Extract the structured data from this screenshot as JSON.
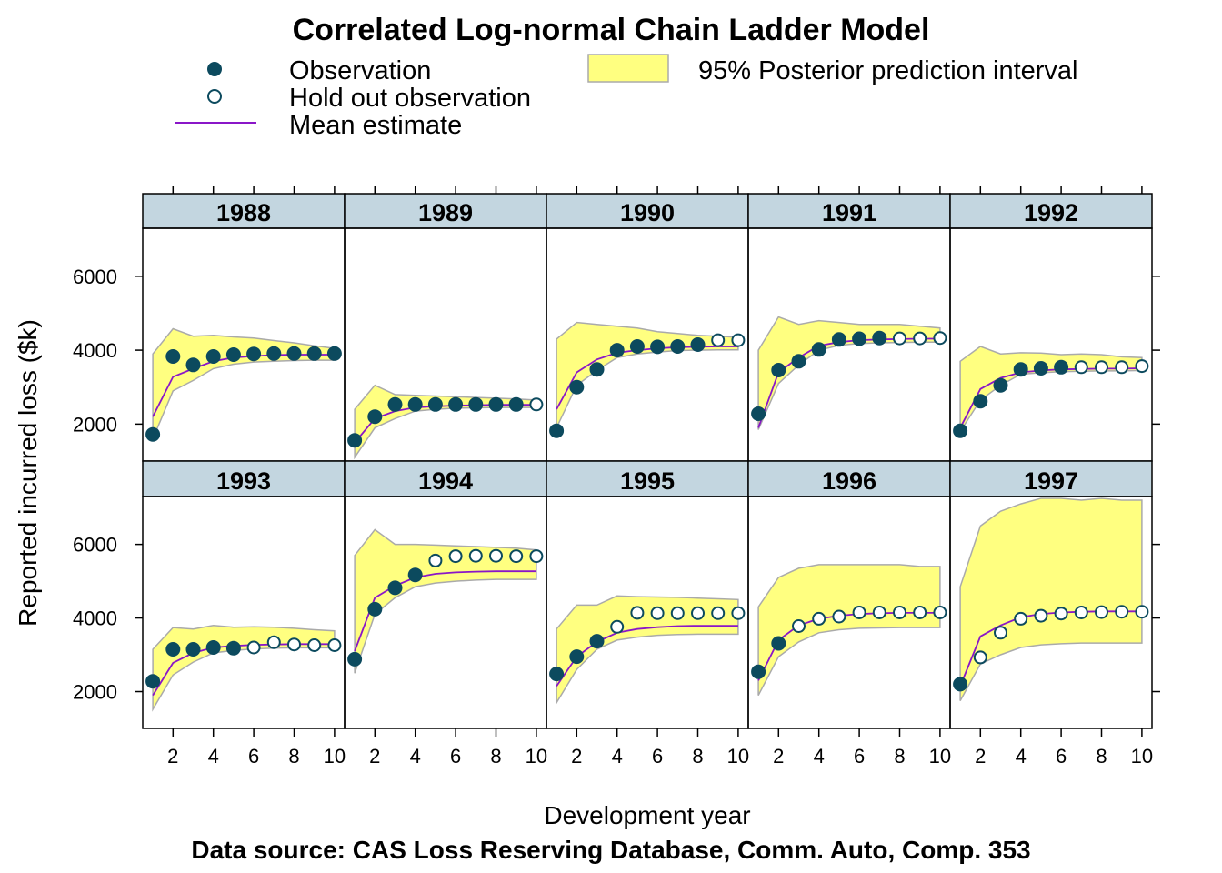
{
  "chart_data": {
    "type": "line",
    "title": "Correlated Log-normal Chain Ladder Model",
    "xlabel": "Development year",
    "ylabel": "Reported incurred loss ($k)",
    "caption": "Data source: CAS Loss Reserving Database, Comm. Auto, Comp. 353",
    "xlim": [
      0.5,
      10.5
    ],
    "ylim": [
      1000,
      7300
    ],
    "x_ticks": [
      2,
      4,
      6,
      8,
      10
    ],
    "y_ticks": [
      2000,
      4000,
      6000
    ],
    "legend": [
      {
        "label": "Observation",
        "kind": "filled-point"
      },
      {
        "label": "Hold out observation",
        "kind": "open-point"
      },
      {
        "label": "Mean estimate",
        "kind": "line"
      },
      {
        "label": "95% Posterior prediction interval",
        "kind": "band"
      }
    ],
    "colors": {
      "point": "#0c4a5e",
      "mean_line": "#8a16c8",
      "band_fill": "#ffff80",
      "band_border": "#aaaaaa",
      "strip_bg": "#c3d6e0"
    },
    "x": [
      1,
      2,
      3,
      4,
      5,
      6,
      7,
      8,
      9,
      10
    ],
    "panels": [
      {
        "name": "1988",
        "observed": [
          1720,
          3830,
          3600,
          3830,
          3880,
          3900,
          3910,
          3910,
          3910,
          3910
        ],
        "holdout_from": 11,
        "mean": [
          2200,
          3280,
          3500,
          3700,
          3800,
          3840,
          3870,
          3880,
          3880,
          3880
        ],
        "lower": [
          1600,
          2900,
          3180,
          3500,
          3620,
          3680,
          3700,
          3720,
          3730,
          3730
        ],
        "upper": [
          3900,
          4580,
          4380,
          4400,
          4360,
          4330,
          4260,
          4200,
          4120,
          4050
        ]
      },
      {
        "name": "1989",
        "observed": [
          1560,
          2200,
          2530,
          2530,
          2530,
          2530,
          2530,
          2530,
          2530,
          2530
        ],
        "holdout_from": 10,
        "mean": [
          1500,
          2150,
          2350,
          2450,
          2480,
          2500,
          2510,
          2520,
          2520,
          2520
        ],
        "lower": [
          1100,
          1900,
          2150,
          2350,
          2400,
          2430,
          2440,
          2450,
          2450,
          2450
        ],
        "upper": [
          2400,
          3050,
          2800,
          2780,
          2760,
          2740,
          2720,
          2700,
          2680,
          2650
        ]
      },
      {
        "name": "1990",
        "observed": [
          1820,
          3000,
          3480,
          4000,
          4100,
          4090,
          4100,
          4150,
          4270,
          4270
        ],
        "holdout_from": 9,
        "mean": [
          2400,
          3400,
          3750,
          3930,
          4000,
          4050,
          4080,
          4090,
          4100,
          4100
        ],
        "lower": [
          1900,
          3050,
          3450,
          3800,
          3900,
          3950,
          3990,
          4000,
          4010,
          4010
        ],
        "upper": [
          4300,
          4750,
          4700,
          4650,
          4600,
          4500,
          4450,
          4400,
          4380,
          4350
        ]
      },
      {
        "name": "1991",
        "observed": [
          2280,
          3460,
          3700,
          4020,
          4290,
          4310,
          4330,
          4320,
          4320,
          4330
        ],
        "holdout_from": 8,
        "mean": [
          1900,
          3400,
          3800,
          4120,
          4220,
          4270,
          4290,
          4300,
          4310,
          4310
        ],
        "lower": [
          1850,
          3100,
          3600,
          4000,
          4130,
          4180,
          4200,
          4210,
          4220,
          4220
        ],
        "upper": [
          4000,
          4900,
          4700,
          4800,
          4750,
          4700,
          4700,
          4700,
          4650,
          4600
        ]
      },
      {
        "name": "1992",
        "observed": [
          1820,
          2620,
          3050,
          3480,
          3510,
          3540,
          3540,
          3540,
          3540,
          3570
        ],
        "holdout_from": 7,
        "mean": [
          1900,
          2950,
          3250,
          3400,
          3450,
          3480,
          3490,
          3500,
          3500,
          3510
        ],
        "lower": [
          1800,
          2650,
          3050,
          3350,
          3390,
          3420,
          3430,
          3440,
          3440,
          3450
        ],
        "upper": [
          3700,
          4100,
          3900,
          3930,
          3920,
          3880,
          3900,
          3880,
          3820,
          3800
        ]
      },
      {
        "name": "1993",
        "observed": [
          2280,
          3150,
          3150,
          3200,
          3180,
          3200,
          3340,
          3280,
          3260,
          3260
        ],
        "holdout_from": 6,
        "mean": [
          1900,
          2780,
          3050,
          3200,
          3240,
          3270,
          3280,
          3290,
          3290,
          3290
        ],
        "lower": [
          1520,
          2450,
          2800,
          3050,
          3120,
          3160,
          3180,
          3190,
          3190,
          3190
        ],
        "upper": [
          3150,
          3740,
          3700,
          3800,
          3750,
          3760,
          3750,
          3720,
          3680,
          3650
        ]
      },
      {
        "name": "1994",
        "observed": [
          2880,
          4240,
          4820,
          5170,
          5560,
          5680,
          5690,
          5690,
          5680,
          5680
        ],
        "holdout_from": 5,
        "mean": [
          3100,
          4550,
          4880,
          5100,
          5200,
          5240,
          5260,
          5270,
          5270,
          5270
        ],
        "lower": [
          2500,
          4100,
          4550,
          4850,
          4950,
          5000,
          5030,
          5050,
          5050,
          5050
        ],
        "upper": [
          5700,
          6400,
          6000,
          6000,
          5980,
          5960,
          5940,
          5920,
          5900,
          5850
        ]
      },
      {
        "name": "1995",
        "observed": [
          2480,
          2950,
          3370,
          3760,
          4140,
          4130,
          4130,
          4130,
          4130,
          4130
        ],
        "holdout_from": 4,
        "mean": [
          2150,
          2950,
          3350,
          3600,
          3700,
          3750,
          3780,
          3790,
          3790,
          3790
        ],
        "lower": [
          1700,
          2600,
          3150,
          3400,
          3480,
          3530,
          3550,
          3560,
          3560,
          3560
        ],
        "upper": [
          3700,
          4350,
          4350,
          4600,
          4580,
          4570,
          4560,
          4540,
          4520,
          4500
        ]
      },
      {
        "name": "1996",
        "observed": [
          2540,
          3310,
          3780,
          3980,
          4040,
          4150,
          4150,
          4150,
          4150,
          4150
        ],
        "holdout_from": 3,
        "mean": [
          2300,
          3400,
          3800,
          3980,
          4060,
          4110,
          4130,
          4140,
          4140,
          4140
        ],
        "lower": [
          1900,
          2950,
          3350,
          3600,
          3680,
          3720,
          3730,
          3740,
          3740,
          3740
        ],
        "upper": [
          4300,
          5100,
          5350,
          5450,
          5450,
          5450,
          5450,
          5450,
          5400,
          5400
        ]
      },
      {
        "name": "1997",
        "observed": [
          2200,
          2930,
          3600,
          3980,
          4060,
          4120,
          4150,
          4160,
          4170,
          4170
        ],
        "holdout_from": 2,
        "mean": [
          2150,
          3500,
          3800,
          4020,
          4110,
          4150,
          4170,
          4180,
          4180,
          4180
        ],
        "lower": [
          1750,
          2750,
          3000,
          3200,
          3270,
          3300,
          3320,
          3320,
          3320,
          3320
        ],
        "upper": [
          4850,
          6500,
          6900,
          7100,
          7250,
          7250,
          7200,
          7250,
          7200,
          7200
        ]
      }
    ]
  }
}
